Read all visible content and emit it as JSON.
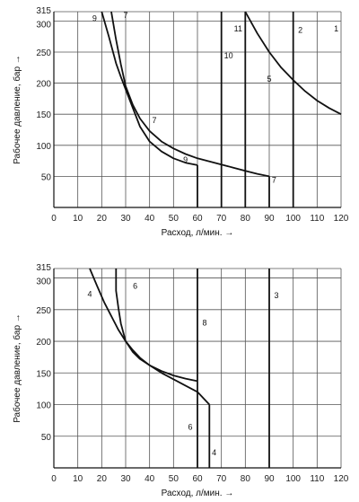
{
  "chart_data": [
    {
      "type": "line",
      "xlabel": "Расход, л/мин. →",
      "ylabel": "Рабочее давление, бар →",
      "xlim": [
        0,
        120
      ],
      "ylim": [
        0,
        315
      ],
      "x_ticks": [
        "0",
        "10",
        "20",
        "30",
        "40",
        "50",
        "60",
        "70",
        "80",
        "90",
        "100",
        "110",
        "120"
      ],
      "y_ticks": [
        {
          "v": 50,
          "label": "50"
        },
        {
          "v": 100,
          "label": "100"
        },
        {
          "v": 150,
          "label": "150"
        },
        {
          "v": 200,
          "label": "200"
        },
        {
          "v": 250,
          "label": "250"
        },
        {
          "v": 300,
          "label": "300"
        },
        {
          "v": 315,
          "label": "315"
        }
      ],
      "grid": true,
      "series": [
        {
          "name": "9",
          "x": [
            20,
            23,
            26,
            28,
            30,
            33,
            36,
            40,
            45,
            50,
            55,
            60
          ],
          "y": [
            315,
            275,
            232,
            210,
            190,
            160,
            130,
            106,
            90,
            79,
            72,
            68
          ]
        },
        {
          "name": "7",
          "x": [
            24,
            26,
            28,
            30,
            33,
            36,
            40,
            45,
            50,
            55,
            60,
            65,
            70,
            75,
            80,
            85,
            90
          ],
          "y": [
            315,
            270,
            230,
            195,
            165,
            143,
            123,
            106,
            95,
            86,
            79,
            74,
            69,
            64,
            59,
            54,
            50
          ]
        },
        {
          "name": "10",
          "x": [
            70,
            70
          ],
          "y": [
            0,
            315
          ]
        },
        {
          "name": "11",
          "x": [
            80,
            80
          ],
          "y": [
            0,
            315
          ]
        },
        {
          "name": "2",
          "x": [
            100,
            100
          ],
          "y": [
            0,
            315
          ]
        },
        {
          "name": "7",
          "x": [
            90,
            90
          ],
          "y": [
            0,
            50
          ]
        },
        {
          "name": "1",
          "x": [
            80,
            85,
            90,
            95,
            100,
            105,
            110,
            115,
            120
          ],
          "y": [
            315,
            280,
            250,
            225,
            205,
            187,
            172,
            160,
            150
          ]
        },
        {
          "name": "",
          "x": [
            60,
            60
          ],
          "y": [
            0,
            68
          ]
        }
      ],
      "curve_labels": [
        {
          "text": "9",
          "x": 17,
          "y": 300
        },
        {
          "text": "7",
          "x": 30,
          "y": 305
        },
        {
          "text": "7",
          "x": 42,
          "y": 136
        },
        {
          "text": "9",
          "x": 55,
          "y": 72
        },
        {
          "text": "7",
          "x": 92,
          "y": 40
        },
        {
          "text": "10",
          "x": 73,
          "y": 240
        },
        {
          "text": "11",
          "x": 77,
          "y": 283
        },
        {
          "text": "2",
          "x": 103,
          "y": 281
        },
        {
          "text": "1",
          "x": 118,
          "y": 283
        },
        {
          "text": "5",
          "x": 90,
          "y": 202
        }
      ]
    },
    {
      "type": "line",
      "xlabel": "Расход, л/мин. →",
      "ylabel": "Рабочее давление, бар →",
      "xlim": [
        0,
        120
      ],
      "ylim": [
        0,
        315
      ],
      "x_ticks": [
        "0",
        "10",
        "20",
        "30",
        "40",
        "50",
        "60",
        "70",
        "80",
        "90",
        "100",
        "110",
        "120"
      ],
      "y_ticks": [
        {
          "v": 50,
          "label": "50"
        },
        {
          "v": 100,
          "label": "100"
        },
        {
          "v": 150,
          "label": "150"
        },
        {
          "v": 200,
          "label": "200"
        },
        {
          "v": 250,
          "label": "250"
        },
        {
          "v": 300,
          "label": "300"
        },
        {
          "v": 315,
          "label": "315"
        }
      ],
      "grid": true,
      "series": [
        {
          "name": "4",
          "x": [
            15,
            18,
            21,
            24,
            27,
            30,
            33,
            36,
            40,
            45,
            50,
            55,
            60,
            65
          ],
          "y": [
            315,
            288,
            262,
            240,
            218,
            200,
            186,
            174,
            162,
            150,
            140,
            130,
            120,
            100
          ]
        },
        {
          "name": "4",
          "x": [
            65,
            65
          ],
          "y": [
            0,
            100
          ]
        },
        {
          "name": "6",
          "x": [
            26,
            26,
            27,
            28,
            30,
            33,
            36,
            40,
            45,
            50,
            55,
            60
          ],
          "y": [
            315,
            280,
            252,
            228,
            200,
            183,
            172,
            162,
            153,
            146,
            141,
            137
          ]
        },
        {
          "name": "6",
          "x": [
            60,
            60
          ],
          "y": [
            0,
            137
          ]
        },
        {
          "name": "8",
          "x": [
            60,
            60
          ],
          "y": [
            137,
            315
          ]
        },
        {
          "name": "3",
          "x": [
            90,
            90
          ],
          "y": [
            0,
            315
          ]
        }
      ],
      "curve_labels": [
        {
          "text": "4",
          "x": 15,
          "y": 270
        },
        {
          "text": "6",
          "x": 34,
          "y": 283
        },
        {
          "text": "8",
          "x": 63,
          "y": 225
        },
        {
          "text": "3",
          "x": 93,
          "y": 268
        },
        {
          "text": "6",
          "x": 57,
          "y": 60
        },
        {
          "text": "4",
          "x": 67,
          "y": 20
        }
      ]
    }
  ]
}
